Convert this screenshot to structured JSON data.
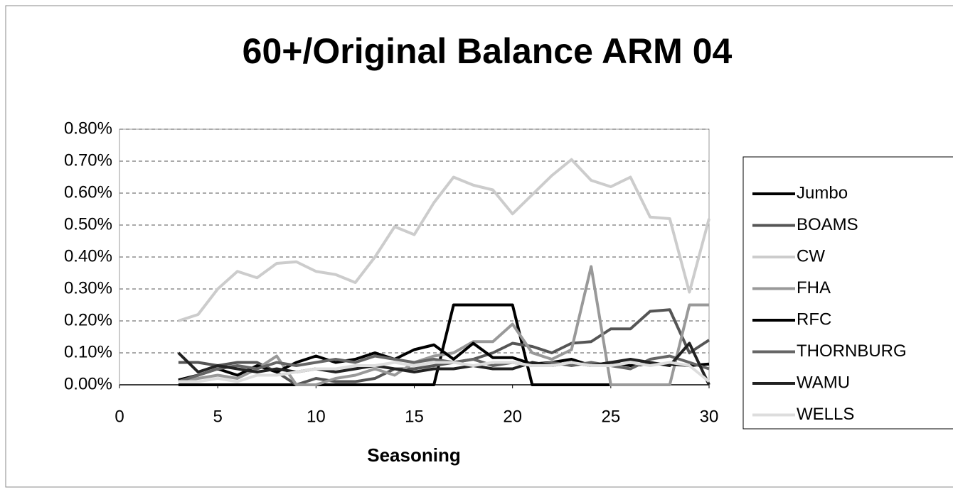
{
  "chart_data": {
    "type": "line",
    "title": "60+/Original Balance ARM 04",
    "x_label": "Seasoning",
    "x": [
      3,
      4,
      5,
      6,
      7,
      8,
      9,
      10,
      11,
      12,
      13,
      14,
      15,
      16,
      17,
      18,
      19,
      20,
      21,
      22,
      23,
      24,
      25,
      26,
      27,
      28,
      29,
      30
    ],
    "xlim": [
      0,
      30
    ],
    "xticks": [
      0,
      5,
      10,
      15,
      20,
      25,
      30
    ],
    "ylim": [
      0,
      0.8
    ],
    "yticks": [
      {
        "value": 0,
        "label": "0.00%"
      },
      {
        "value": 0.1,
        "label": "0.10%"
      },
      {
        "value": 0.2,
        "label": "0.20%"
      },
      {
        "value": 0.3,
        "label": "0.30%"
      },
      {
        "value": 0.4,
        "label": "0.40%"
      },
      {
        "value": 0.5,
        "label": "0.50%"
      },
      {
        "value": 0.6,
        "label": "0.60%"
      },
      {
        "value": 0.7,
        "label": "0.70%"
      },
      {
        "value": 0.8,
        "label": "0.80%"
      }
    ],
    "grid": true,
    "legend": "right",
    "series": [
      {
        "name": "Jumbo",
        "color": "#000000",
        "values": [
          0,
          0,
          0,
          0,
          0,
          0,
          0,
          0,
          0,
          0,
          0,
          0,
          0,
          0,
          0.25,
          0.25,
          0.25,
          0.25,
          0,
          0,
          0,
          0,
          0,
          0,
          null,
          null,
          null,
          null
        ]
      },
      {
        "name": "BOAMS",
        "color": "#555555",
        "values": [
          0.07,
          0.07,
          0.06,
          0.07,
          0.07,
          0.04,
          0.0,
          0.02,
          0.01,
          0.01,
          0.02,
          0.05,
          0.05,
          0.06,
          0.07,
          0.08,
          0.1,
          0.13,
          0.12,
          0.1,
          0.13,
          0.135,
          0.175,
          0.175,
          0.23,
          0.235,
          0.1,
          0.14
        ]
      },
      {
        "name": "CW",
        "color": "#cccccc",
        "values": [
          0.2,
          0.22,
          0.3,
          0.355,
          0.335,
          0.38,
          0.385,
          0.355,
          0.345,
          0.32,
          0.4,
          0.495,
          0.47,
          0.57,
          0.65,
          0.625,
          0.61,
          0.535,
          0.595,
          0.655,
          0.705,
          0.64,
          0.62,
          0.65,
          0.525,
          0.52,
          0.29,
          0.52
        ]
      },
      {
        "name": "FHA",
        "color": "#999999",
        "values": [
          0.01,
          0.02,
          0.03,
          0.02,
          0.05,
          0.09,
          0.0,
          0.0,
          0.02,
          0.03,
          0.05,
          0.03,
          0.07,
          0.09,
          0.1,
          0.135,
          0.135,
          0.19,
          0.1,
          0.08,
          0.11,
          0.37,
          0.0,
          0.0,
          0.0,
          0.0,
          0.25,
          0.25
        ]
      },
      {
        "name": "RFC",
        "color": "#000000",
        "values": [
          0.015,
          0.03,
          0.05,
          0.03,
          0.06,
          0.04,
          0.07,
          0.09,
          0.07,
          0.08,
          0.1,
          0.08,
          0.11,
          0.125,
          0.08,
          0.13,
          0.085,
          0.085,
          0.065,
          0.07,
          0.08,
          0.06,
          0.07,
          0.06,
          0.065,
          0.065,
          0.06,
          0.065
        ]
      },
      {
        "name": "THORNBURG",
        "color": "#666666",
        "values": [
          0.01,
          0.03,
          0.05,
          0.06,
          0.05,
          0.07,
          0.06,
          0.07,
          0.08,
          0.07,
          0.09,
          0.08,
          0.07,
          0.08,
          0.07,
          0.08,
          0.06,
          0.07,
          0.06,
          0.07,
          0.06,
          0.07,
          0.06,
          0.05,
          0.08,
          0.09,
          0.07,
          0.05
        ]
      },
      {
        "name": "WAMU",
        "color": "#222222",
        "values": [
          0.1,
          0.04,
          0.06,
          0.05,
          0.04,
          0.05,
          0.04,
          0.05,
          0.04,
          0.05,
          0.06,
          0.05,
          0.04,
          0.05,
          0.05,
          0.06,
          0.05,
          0.05,
          0.07,
          0.06,
          0.07,
          0.06,
          0.07,
          0.08,
          0.07,
          0.06,
          0.13,
          0.0
        ]
      },
      {
        "name": "WELLS",
        "color": "#dddddd",
        "values": [
          0.01,
          0.01,
          0.02,
          0.01,
          0.03,
          0.03,
          0.04,
          0.05,
          0.05,
          0.06,
          0.06,
          0.07,
          0.06,
          0.07,
          0.07,
          0.06,
          0.07,
          0.07,
          0.06,
          0.06,
          0.07,
          0.06,
          0.06,
          0.07,
          0.06,
          0.07,
          0.06,
          0.01
        ]
      }
    ]
  }
}
